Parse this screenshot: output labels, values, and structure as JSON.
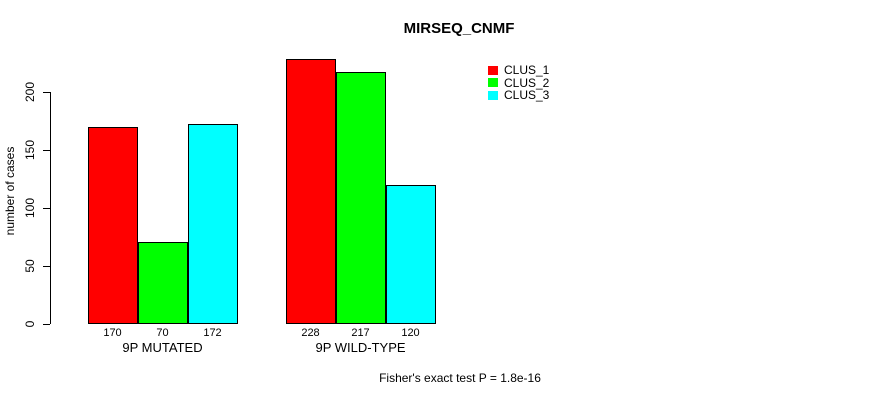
{
  "chart_data": {
    "type": "bar",
    "title": "MIRSEQ_CNMF",
    "ylabel": "number of cases",
    "xlabel": "",
    "categories": [
      "9P MUTATED",
      "9P WILD-TYPE"
    ],
    "series": [
      {
        "name": "CLUS_1",
        "color": "#ff0000",
        "values": [
          170,
          228
        ]
      },
      {
        "name": "CLUS_2",
        "color": "#00ff00",
        "values": [
          70,
          217
        ]
      },
      {
        "name": "CLUS_3",
        "color": "#00ffff",
        "values": [
          172,
          120
        ]
      }
    ],
    "bar_value_labels": [
      [
        170,
        70,
        172
      ],
      [
        228,
        217,
        120
      ]
    ],
    "yticks": [
      0,
      50,
      100,
      150,
      200
    ],
    "ylim": [
      0,
      230
    ],
    "grid": false,
    "legend_position": "top-right",
    "legend_entries": [
      "CLUS_1",
      "CLUS_2",
      "CLUS_3"
    ],
    "annotation": "Fisher's exact test P = 1.8e-16"
  }
}
